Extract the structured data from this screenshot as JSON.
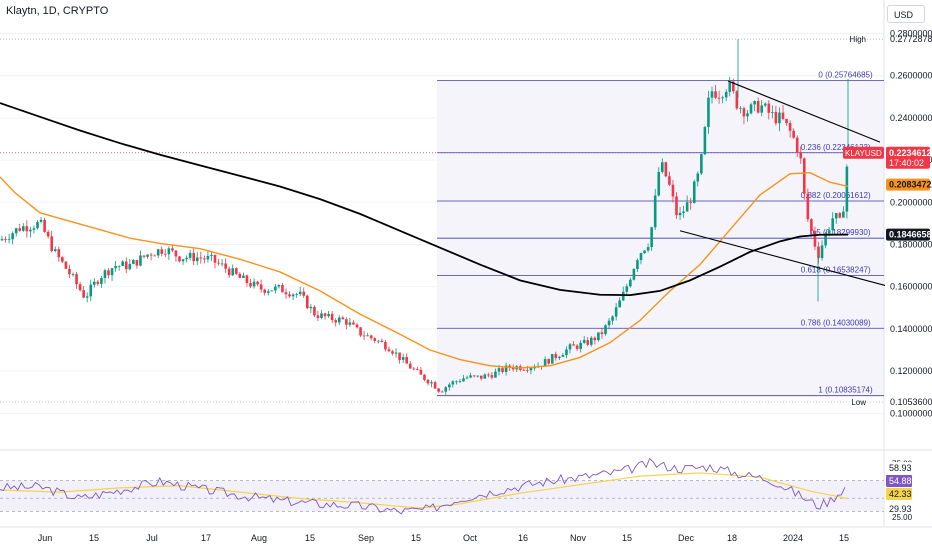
{
  "header": {
    "title": "Klaytn, 1D, CRYPTO"
  },
  "currency_button": {
    "label": "USD"
  },
  "chart_data": {
    "type": "candlestick",
    "symbol": "KLAYUSD",
    "interval": "1D",
    "x_ticks": [
      "Jun",
      "15",
      "Jul",
      "17",
      "Aug",
      "15",
      "Sep",
      "15",
      "Oct",
      "16",
      "Nov",
      "15",
      "Dec",
      "18",
      "2024",
      "15"
    ],
    "y_ticks": [
      "0.28000000",
      "0.26000000",
      "0.24000000",
      "0.22000000",
      "0.20000000",
      "0.18000000",
      "0.16000000",
      "0.14000000",
      "0.12000000",
      "0.10000000"
    ],
    "ylim": [
      0.094,
      0.284
    ],
    "high": {
      "label": "High",
      "value": "0.27728782",
      "num": 0.27728782
    },
    "low": {
      "label": "Low",
      "value": "0.10536005",
      "num": 0.10536005
    },
    "fib_levels": [
      {
        "ratio": "0",
        "text": "0 (0.25764685)",
        "value": 0.25764685
      },
      {
        "ratio": "0.236",
        "text": "0.236 (0.22346123)",
        "value": 0.22346123
      },
      {
        "ratio": "0.382",
        "text": "0.382 (0.20061612)",
        "value": 0.20061612
      },
      {
        "ratio": "0.5",
        "text": "0.5 (0.18299930)",
        "value": 0.1829993
      },
      {
        "ratio": "0.618",
        "text": "0.618 (0.16538247)",
        "value": 0.16538247
      },
      {
        "ratio": "0.786",
        "text": "0.786 (0.14030089)",
        "value": 0.14030089
      },
      {
        "ratio": "1",
        "text": "1 (0.10835174)",
        "value": 0.10835174
      }
    ],
    "price_badges": [
      {
        "name": "last-price",
        "symbol": "KLAYUSD",
        "value": "0.22346123",
        "num": 0.22346123,
        "countdown": "17:40:02",
        "color": "#f23645"
      },
      {
        "name": "ema-50",
        "value": "0.20834722",
        "num": 0.20834722,
        "color": "#f7931a"
      },
      {
        "name": "ema-200",
        "value": "0.18466581",
        "num": 0.18466581,
        "color": "#131722"
      }
    ],
    "moving_averages": [
      {
        "name": "MA 50",
        "color": "#f7931a",
        "points": [
          [
            0,
            0.212
          ],
          [
            15,
            0.2045
          ],
          [
            40,
            0.195
          ],
          [
            70,
            0.191
          ],
          [
            100,
            0.187
          ],
          [
            130,
            0.183
          ],
          [
            160,
            0.1805
          ],
          [
            200,
            0.178
          ],
          [
            240,
            0.173
          ],
          [
            280,
            0.167
          ],
          [
            320,
            0.158
          ],
          [
            360,
            0.147
          ],
          [
            400,
            0.1375
          ],
          [
            430,
            0.13
          ],
          [
            460,
            0.1255
          ],
          [
            490,
            0.1225
          ],
          [
            520,
            0.1215
          ],
          [
            550,
            0.1225
          ],
          [
            580,
            0.1265
          ],
          [
            610,
            0.1335
          ],
          [
            640,
            0.144
          ],
          [
            670,
            0.158
          ],
          [
            700,
            0.1705
          ],
          [
            730,
            0.187
          ],
          [
            760,
            0.2035
          ],
          [
            790,
            0.2135
          ],
          [
            810,
            0.214
          ],
          [
            830,
            0.2095
          ],
          [
            848,
            0.2075
          ]
        ]
      },
      {
        "name": "MA 200",
        "color": "#000000",
        "points": [
          [
            0,
            0.247
          ],
          [
            40,
            0.2405
          ],
          [
            80,
            0.234
          ],
          [
            120,
            0.228
          ],
          [
            160,
            0.2225
          ],
          [
            200,
            0.2175
          ],
          [
            240,
            0.2125
          ],
          [
            280,
            0.2075
          ],
          [
            320,
            0.2015
          ],
          [
            360,
            0.1945
          ],
          [
            400,
            0.1865
          ],
          [
            440,
            0.1785
          ],
          [
            480,
            0.1705
          ],
          [
            520,
            0.163
          ],
          [
            560,
            0.1585
          ],
          [
            600,
            0.1562
          ],
          [
            630,
            0.156
          ],
          [
            660,
            0.158
          ],
          [
            690,
            0.163
          ],
          [
            720,
            0.1695
          ],
          [
            750,
            0.1765
          ],
          [
            780,
            0.1815
          ],
          [
            800,
            0.1838
          ],
          [
            820,
            0.1846
          ],
          [
            848,
            0.1847
          ]
        ]
      }
    ],
    "trendlines": [
      {
        "name": "upper-trendline",
        "from": [
          728,
          0.2575
        ],
        "to": [
          880,
          0.2285
        ]
      },
      {
        "name": "lower-trendline",
        "from": [
          680,
          0.1865
        ],
        "to": [
          885,
          0.1606
        ]
      }
    ],
    "price_path": [
      [
        0,
        0.182
      ],
      [
        20,
        0.188
      ],
      [
        40,
        0.19
      ],
      [
        55,
        0.176
      ],
      [
        70,
        0.166
      ],
      [
        85,
        0.155
      ],
      [
        100,
        0.165
      ],
      [
        115,
        0.17
      ],
      [
        130,
        0.17
      ],
      [
        150,
        0.176
      ],
      [
        165,
        0.178
      ],
      [
        180,
        0.174
      ],
      [
        195,
        0.174
      ],
      [
        210,
        0.173
      ],
      [
        225,
        0.169
      ],
      [
        240,
        0.164
      ],
      [
        260,
        0.159
      ],
      [
        280,
        0.159
      ],
      [
        300,
        0.156
      ],
      [
        315,
        0.147
      ],
      [
        330,
        0.145
      ],
      [
        345,
        0.144
      ],
      [
        360,
        0.138
      ],
      [
        375,
        0.135
      ],
      [
        390,
        0.131
      ],
      [
        405,
        0.124
      ],
      [
        420,
        0.118
      ],
      [
        432,
        0.1145
      ],
      [
        440,
        0.1108
      ],
      [
        450,
        0.114
      ],
      [
        465,
        0.117
      ],
      [
        480,
        0.117
      ],
      [
        495,
        0.119
      ],
      [
        510,
        0.122
      ],
      [
        525,
        0.122
      ],
      [
        540,
        0.123
      ],
      [
        555,
        0.127
      ],
      [
        570,
        0.131
      ],
      [
        585,
        0.133
      ],
      [
        600,
        0.137
      ],
      [
        612,
        0.145
      ],
      [
        625,
        0.158
      ],
      [
        638,
        0.175
      ],
      [
        650,
        0.182
      ],
      [
        660,
        0.219
      ],
      [
        668,
        0.21
      ],
      [
        678,
        0.192
      ],
      [
        690,
        0.201
      ],
      [
        700,
        0.215
      ],
      [
        710,
        0.253
      ],
      [
        720,
        0.252
      ],
      [
        728,
        0.256
      ],
      [
        738,
        0.246
      ],
      [
        748,
        0.243
      ],
      [
        760,
        0.246
      ],
      [
        772,
        0.241
      ],
      [
        782,
        0.239
      ],
      [
        792,
        0.232
      ],
      [
        800,
        0.223
      ],
      [
        806,
        0.195
      ],
      [
        812,
        0.185
      ],
      [
        818,
        0.175
      ],
      [
        826,
        0.185
      ],
      [
        834,
        0.194
      ],
      [
        840,
        0.19
      ],
      [
        844,
        0.2
      ],
      [
        848,
        0.2235
      ]
    ],
    "rsi": {
      "upper_label": "75.00",
      "lower_label": "25.00",
      "badges": [
        {
          "text": "58.93",
          "color": "#ffffff",
          "fg": "#131722"
        },
        {
          "text": "54.88",
          "color": "#7e57c2",
          "fg": "#ffffff"
        },
        {
          "text": "42.33",
          "color": "#f5d34a",
          "fg": "#131722"
        },
        {
          "text": "29.93",
          "color": "#ffffff",
          "fg": "#131722"
        }
      ],
      "ylim": [
        20,
        80
      ],
      "rsi_path": [
        [
          0,
          52
        ],
        [
          40,
          53
        ],
        [
          80,
          42
        ],
        [
          120,
          50
        ],
        [
          160,
          58
        ],
        [
          200,
          51
        ],
        [
          240,
          45
        ],
        [
          280,
          40
        ],
        [
          320,
          37
        ],
        [
          360,
          35
        ],
        [
          400,
          30
        ],
        [
          430,
          32
        ],
        [
          460,
          42
        ],
        [
          500,
          50
        ],
        [
          540,
          57
        ],
        [
          580,
          62
        ],
        [
          620,
          67
        ],
        [
          650,
          75
        ],
        [
          680,
          70
        ],
        [
          710,
          72
        ],
        [
          740,
          65
        ],
        [
          770,
          60
        ],
        [
          800,
          45
        ],
        [
          818,
          35
        ],
        [
          830,
          40
        ],
        [
          848,
          55
        ]
      ],
      "signal_path": [
        [
          0,
          50
        ],
        [
          60,
          48
        ],
        [
          120,
          52
        ],
        [
          180,
          54
        ],
        [
          240,
          48
        ],
        [
          300,
          42
        ],
        [
          360,
          38
        ],
        [
          420,
          33
        ],
        [
          460,
          37
        ],
        [
          520,
          47
        ],
        [
          580,
          55
        ],
        [
          640,
          63
        ],
        [
          700,
          66
        ],
        [
          760,
          62
        ],
        [
          810,
          49
        ],
        [
          848,
          42
        ]
      ]
    },
    "colors": {
      "up": "#089981",
      "down": "#f23645",
      "fib_line": "#3d3ab0",
      "fib_zone": "#e9e6f7"
    }
  }
}
